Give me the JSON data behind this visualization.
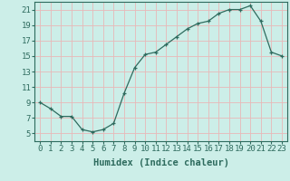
{
  "x": [
    0,
    1,
    2,
    3,
    4,
    5,
    6,
    7,
    8,
    9,
    10,
    11,
    12,
    13,
    14,
    15,
    16,
    17,
    18,
    19,
    20,
    21,
    22,
    23
  ],
  "y": [
    9,
    8.2,
    7.2,
    7.2,
    5.5,
    5.2,
    5.5,
    6.3,
    10.2,
    13.5,
    15.2,
    15.5,
    16.5,
    17.5,
    18.5,
    19.2,
    19.5,
    20.5,
    21.0,
    21.0,
    21.5,
    19.5,
    15.5,
    15.0
  ],
  "line_color": "#2e6b5e",
  "marker": "+",
  "marker_size": 3,
  "bg_color": "#cceee8",
  "grid_color": "#e8b8b8",
  "xlabel": "Humidex (Indice chaleur)",
  "xlim": [
    -0.5,
    23.5
  ],
  "ylim": [
    4,
    22
  ],
  "yticks": [
    5,
    7,
    9,
    11,
    13,
    15,
    17,
    19,
    21
  ],
  "xticks": [
    0,
    1,
    2,
    3,
    4,
    5,
    6,
    7,
    8,
    9,
    10,
    11,
    12,
    13,
    14,
    15,
    16,
    17,
    18,
    19,
    20,
    21,
    22,
    23
  ],
  "tick_fontsize": 6.5,
  "xlabel_fontsize": 7.5
}
